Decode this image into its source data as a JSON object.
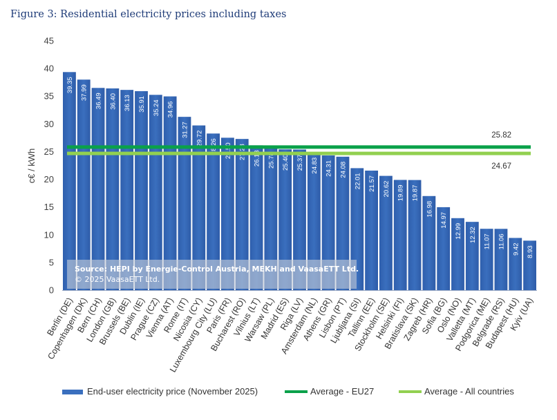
{
  "figure_title": "Figure 3: Residential electricity prices including taxes",
  "chart_data": {
    "type": "bar",
    "title": "Figure 3: Residential electricity prices including taxes",
    "xlabel": "",
    "ylabel": "c€ / kWh",
    "ylim": [
      0,
      45
    ],
    "yticks": [
      0,
      5,
      10,
      15,
      20,
      25,
      30,
      35,
      40,
      45
    ],
    "grid": false,
    "legend_position": "bottom",
    "categories": [
      "Berlin (DE)",
      "Copenhagen (DK)",
      "Bern (CH)",
      "London (GB)",
      "Brussels (BE)",
      "Dublin (IE)",
      "Prague (CZ)",
      "Vienna (AT)",
      "Rome (IT)",
      "Nicosia (CY)",
      "Luxembourg City (LU)",
      "Paris (FR)",
      "Bucharest (RO)",
      "Vilnius (LT)",
      "Warsaw (PL)",
      "Madrid (ES)",
      "Riga (LV)",
      "Amsterdam (NL)",
      "Athens (GR)",
      "Lisbon (PT)",
      "Ljubljana (SI)",
      "Tallinn (EE)",
      "Stockholm (SE)",
      "Helsinki (FI)",
      "Bratislava (SK)",
      "Zagreb (HR)",
      "Sofia (BG)",
      "Oslo (NO)",
      "Valletta (MT)",
      "Podgorica (ME)",
      "Belgrade (RS)",
      "Budapest (HU)",
      "Kyiv (UA)"
    ],
    "series": [
      {
        "name": "End-user electricity price (November 2025)",
        "color": "#3a6fbe",
        "values": [
          39.35,
          37.99,
          36.49,
          36.4,
          36.13,
          35.91,
          35.24,
          34.96,
          31.27,
          29.72,
          28.26,
          27.5,
          27.28,
          26.13,
          25.78,
          25.4,
          25.37,
          24.83,
          24.31,
          24.08,
          22.01,
          21.57,
          20.62,
          19.89,
          19.87,
          16.98,
          14.97,
          12.99,
          12.32,
          11.07,
          11.06,
          9.42,
          8.93
        ],
        "labels": [
          "39.35",
          "37.99",
          "36.49",
          "36.40",
          "36.13",
          "35.91",
          "35.24",
          "34.96",
          "31.27",
          "29.72",
          "28.26",
          "27.50",
          "27.28",
          "26.13",
          "25.78",
          "25.40",
          "25.37",
          "24.83",
          "24.31",
          "24.08",
          "22.01",
          "21.57",
          "20.62",
          "19.89",
          "19.87",
          "16.98",
          "14.97",
          "12.99",
          "12.32",
          "11.07",
          "11.06",
          "9.42",
          "8.93"
        ]
      }
    ],
    "reference_lines": [
      {
        "name": "Average - EU27",
        "value": 25.82,
        "label": "25.82",
        "color": "#0aa14a"
      },
      {
        "name": "Average - All countries",
        "value": 24.67,
        "label": "24.67",
        "color": "#92d050"
      }
    ],
    "annotation": {
      "line1": "Source: HEPI by Energie-Control Austria, MEKH and VaasaETT Ltd.",
      "line2": "© 2025 VaasaETT Ltd."
    }
  }
}
